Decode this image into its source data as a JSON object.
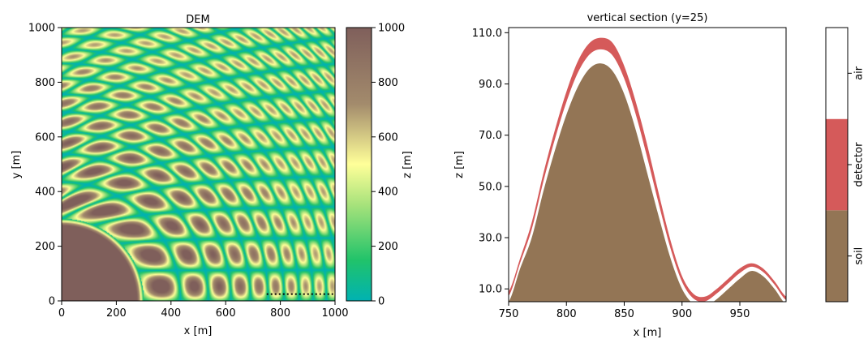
{
  "chart_data": [
    {
      "type": "heatmap",
      "title": "DEM",
      "xlabel": "x [m]",
      "ylabel": "y [m]",
      "xlim": [
        0,
        1000
      ],
      "ylim": [
        0,
        1000
      ],
      "xticks": [
        "0",
        "200",
        "400",
        "600",
        "800",
        "1000"
      ],
      "yticks": [
        "0",
        "200",
        "400",
        "600",
        "800",
        "1000"
      ],
      "colorbar": {
        "label": "z [m]",
        "range": [
          0,
          1000
        ],
        "ticks": [
          "0",
          "200",
          "400",
          "600",
          "800",
          "1000"
        ],
        "colormap": "terrain",
        "colors": [
          "#00b2b2",
          "#21c36a",
          "#ffff99",
          "#a38b6c",
          "#7f5f5b"
        ]
      },
      "section_line": {
        "y": 25,
        "x_range": [
          750,
          1000
        ],
        "style": "dotted",
        "color": "#000000"
      }
    },
    {
      "type": "area",
      "title": "vertical section (y=25)",
      "xlabel": "x [m]",
      "ylabel": "z [m]",
      "xlim": [
        750,
        990
      ],
      "ylim": [
        5,
        112
      ],
      "xticks": [
        "750",
        "800",
        "850",
        "900",
        "950"
      ],
      "yticks": [
        "10.0",
        "30.0",
        "50.0",
        "70.0",
        "90.0",
        "110.0"
      ],
      "series": [
        {
          "name": "soil",
          "color": "#937555",
          "x": [
            750,
            760,
            770,
            780,
            790,
            800,
            810,
            820,
            830,
            840,
            850,
            860,
            870,
            880,
            890,
            900,
            910,
            920,
            930,
            940,
            950,
            960,
            970,
            980,
            990
          ],
          "values": [
            5,
            18,
            30,
            48,
            64,
            78,
            89,
            96,
            98,
            95,
            86,
            72,
            55,
            38,
            22,
            10,
            4,
            3,
            6,
            10,
            14,
            17,
            15,
            10,
            4
          ]
        },
        {
          "name": "detector",
          "color": "#d55a5a",
          "x": [
            750,
            760,
            770,
            780,
            790,
            800,
            810,
            820,
            830,
            840,
            850,
            860,
            870,
            880,
            890,
            900,
            910,
            920,
            930,
            940,
            950,
            960,
            970,
            980,
            990
          ],
          "values": [
            9,
            22,
            36,
            55,
            72,
            87,
            99,
            106,
            108,
            106,
            97,
            83,
            66,
            47,
            29,
            15,
            8,
            7,
            10,
            14,
            18,
            20,
            18,
            13,
            7
          ]
        }
      ],
      "colorbar": {
        "categories": [
          "soil",
          "detector",
          "air"
        ],
        "colors": [
          "#937555",
          "#d55a5a",
          "#ffffff"
        ]
      }
    }
  ]
}
